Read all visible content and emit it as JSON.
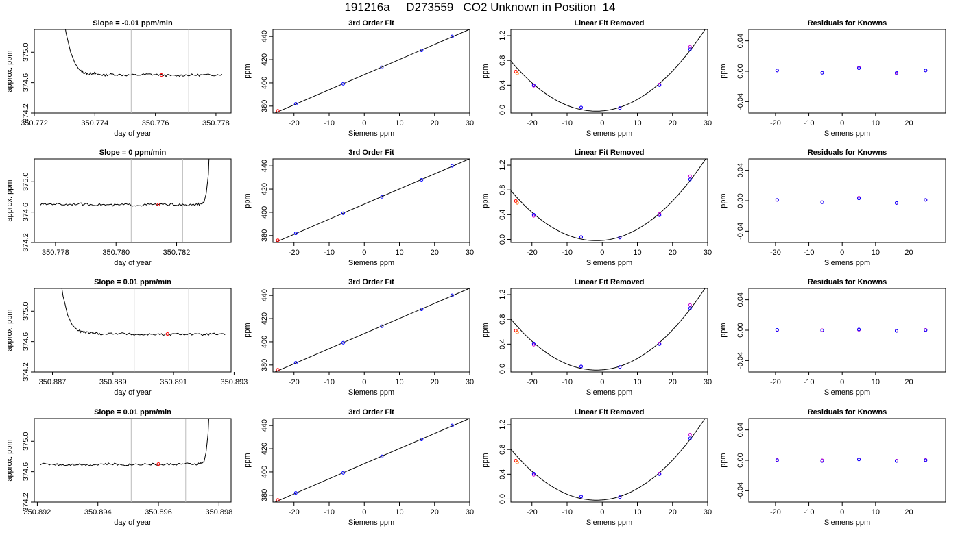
{
  "title": "191216a     D273559   CO2 Unknown in Position  14",
  "chart_data": [
    {
      "type": "line",
      "panel": "timeseries",
      "title": "Slope =  -0.01  ppm/min",
      "xlabel": "day of year",
      "ylabel": "approx. ppm",
      "xlim": [
        350.772,
        350.7785
      ],
      "ylim": [
        374.2,
        375.3
      ],
      "xticks": [
        350.772,
        350.774,
        350.776,
        350.778
      ],
      "xticklabels": [
        "350.772",
        "350.774",
        "350.776",
        "350.778"
      ],
      "yticks": [
        374.2,
        374.6,
        375.0
      ],
      "yticklabels": [
        "374.2",
        "374.6",
        "375.0"
      ],
      "vlines": [
        350.7752,
        350.7771
      ],
      "spike": "start",
      "x": [
        350.7729,
        350.77305,
        350.7732,
        350.77335,
        350.7735,
        350.77365,
        350.7738,
        350.77395,
        350.7741,
        350.7743,
        350.7746,
        350.775,
        350.7754,
        350.7758,
        350.7762,
        350.7766,
        350.777,
        350.7774,
        350.7778,
        350.7782
      ],
      "y": [
        375.6,
        375.25,
        375.0,
        374.85,
        374.76,
        374.73,
        374.71,
        374.73,
        374.71,
        374.7,
        374.71,
        374.7,
        374.7,
        374.71,
        374.7,
        374.69,
        374.7,
        374.7,
        374.7,
        374.71
      ],
      "marker": {
        "x": 350.7762,
        "y": 374.7
      }
    },
    {
      "type": "scatter",
      "panel": "fit",
      "title": "3rd Order Fit",
      "xlabel": "Siemens ppm",
      "ylabel": "ppm",
      "xlim": [
        -26,
        30
      ],
      "ylim": [
        374,
        446
      ],
      "xticks": [
        -20,
        -10,
        0,
        10,
        20,
        30
      ],
      "xticklabels": [
        "-20",
        "-10",
        "0",
        "10",
        "20",
        "30"
      ],
      "yticks": [
        380,
        400,
        420,
        440
      ],
      "yticklabels": [
        "380",
        "400",
        "420",
        "440"
      ],
      "x": [
        -19.5,
        -6,
        5,
        16.3,
        25
      ],
      "y": [
        381.9,
        399.2,
        413.4,
        428.0,
        440.0
      ],
      "unknown": {
        "x": -24.6,
        "y": 375.9
      }
    },
    {
      "type": "scatter",
      "panel": "linfit",
      "title": "Linear Fit Removed",
      "xlabel": "Siemens ppm",
      "ylabel": "ppm",
      "xlim": [
        -26,
        30
      ],
      "ylim": [
        -0.05,
        1.3
      ],
      "xticks": [
        -20,
        -10,
        0,
        10,
        20,
        30
      ],
      "xticklabels": [
        "-20",
        "-10",
        "0",
        "10",
        "20",
        "30"
      ],
      "yticks": [
        0,
        0.4,
        0.8,
        1.2
      ],
      "yticklabels": [
        "0.0",
        "0.4",
        "0.8",
        "1.2"
      ],
      "x": [
        -19.5,
        -6,
        5,
        16.3,
        25
      ],
      "y": [
        0.4,
        0.04,
        0.03,
        0.4,
        0.98
      ],
      "y_alt": [
        0.39,
        0.04,
        0.03,
        0.41,
        1.02
      ],
      "unknown": {
        "x": -24.6,
        "y": 0.62
      }
    },
    {
      "type": "scatter",
      "panel": "resid",
      "title": "Residuals for Knowns",
      "xlabel": "Siemens ppm",
      "ylabel": "ppm",
      "xlim": [
        -28,
        31
      ],
      "ylim": [
        -0.055,
        0.055
      ],
      "xticks": [
        -20,
        -10,
        0,
        10,
        20
      ],
      "xticklabels": [
        "-20",
        "-10",
        "0",
        "10",
        "20"
      ],
      "yticks": [
        -0.04,
        0,
        0.04
      ],
      "yticklabels": [
        "-0.04",
        "0.00",
        "0.04"
      ],
      "x": [
        -19.5,
        -6,
        5,
        16.3,
        25
      ],
      "y": [
        0.001,
        -0.002,
        0.004,
        -0.002,
        0.001
      ],
      "y_alt": [
        0.001,
        -0.002,
        0.005,
        -0.003,
        0.001
      ]
    },
    {
      "type": "line",
      "panel": "timeseries",
      "title": "Slope =  0  ppm/min",
      "xlabel": "day of year",
      "ylabel": "approx. ppm",
      "xlim": [
        350.7773,
        350.7838
      ],
      "ylim": [
        374.2,
        375.3
      ],
      "xticks": [
        350.778,
        350.78,
        350.782
      ],
      "xticklabels": [
        "350.778",
        "350.780",
        "350.782"
      ],
      "yticks": [
        374.2,
        374.6,
        375.0
      ],
      "yticklabels": [
        "374.2",
        "374.6",
        "375.0"
      ],
      "vlines": [
        350.7805,
        350.7822
      ],
      "spike": "end",
      "x": [
        350.7775,
        350.7779,
        350.7783,
        350.7787,
        350.7791,
        350.7795,
        350.7799,
        350.7803,
        350.7807,
        350.7811,
        350.7815,
        350.7819,
        350.7823,
        350.7827,
        350.7829,
        350.78298,
        350.78305,
        350.7831
      ],
      "y": [
        374.7,
        374.71,
        374.7,
        374.71,
        374.7,
        374.7,
        374.69,
        374.7,
        374.69,
        374.7,
        374.7,
        374.7,
        374.69,
        374.7,
        374.72,
        374.85,
        375.1,
        375.6
      ],
      "marker": {
        "x": 350.7814,
        "y": 374.7
      }
    },
    {
      "type": "scatter",
      "panel": "fit",
      "title": "3rd Order Fit",
      "xlabel": "Siemens ppm",
      "ylabel": "ppm",
      "xlim": [
        -26,
        30
      ],
      "ylim": [
        374,
        446
      ],
      "xticks": [
        -20,
        -10,
        0,
        10,
        20,
        30
      ],
      "xticklabels": [
        "-20",
        "-10",
        "0",
        "10",
        "20",
        "30"
      ],
      "yticks": [
        380,
        400,
        420,
        440
      ],
      "yticklabels": [
        "380",
        "400",
        "420",
        "440"
      ],
      "x": [
        -19.5,
        -6,
        5,
        16.3,
        25
      ],
      "y": [
        381.9,
        399.2,
        413.4,
        428.0,
        440.0
      ],
      "unknown": {
        "x": -24.6,
        "y": 375.9
      }
    },
    {
      "type": "scatter",
      "panel": "linfit",
      "title": "Linear Fit Removed",
      "xlabel": "Siemens ppm",
      "ylabel": "ppm",
      "xlim": [
        -26,
        30
      ],
      "ylim": [
        -0.05,
        1.3
      ],
      "xticks": [
        -20,
        -10,
        0,
        10,
        20,
        30
      ],
      "xticklabels": [
        "-20",
        "-10",
        "0",
        "10",
        "20",
        "30"
      ],
      "yticks": [
        0,
        0.4,
        0.8,
        1.2
      ],
      "yticklabels": [
        "0.0",
        "0.4",
        "0.8",
        "1.2"
      ],
      "x": [
        -19.5,
        -6,
        5,
        16.3,
        25
      ],
      "y": [
        0.4,
        0.04,
        0.03,
        0.39,
        0.97
      ],
      "y_alt": [
        0.38,
        0.04,
        0.03,
        0.41,
        1.02
      ],
      "unknown": {
        "x": -24.6,
        "y": 0.62
      }
    },
    {
      "type": "scatter",
      "panel": "resid",
      "title": "Residuals for Knowns",
      "xlabel": "Siemens ppm",
      "ylabel": "ppm",
      "xlim": [
        -28,
        31
      ],
      "ylim": [
        -0.055,
        0.055
      ],
      "xticks": [
        -20,
        -10,
        0,
        10,
        20
      ],
      "xticklabels": [
        "-20",
        "-10",
        "0",
        "10",
        "20"
      ],
      "yticks": [
        -0.04,
        0,
        0.04
      ],
      "yticklabels": [
        "-0.04",
        "0.00",
        "0.04"
      ],
      "x": [
        -19.5,
        -6,
        5,
        16.3,
        25
      ],
      "y": [
        0.001,
        -0.002,
        0.003,
        -0.003,
        0.001
      ],
      "y_alt": [
        0.001,
        -0.002,
        0.004,
        -0.003,
        0.001
      ]
    },
    {
      "type": "line",
      "panel": "timeseries",
      "title": "Slope =  0.01  ppm/min",
      "xlabel": "day of year",
      "ylabel": "approx. ppm",
      "xlim": [
        350.8864,
        350.8929
      ],
      "ylim": [
        374.2,
        375.3
      ],
      "xticks": [
        350.887,
        350.889,
        350.891,
        350.893
      ],
      "xticklabels": [
        "350.887",
        "350.889",
        "350.891",
        "350.893"
      ],
      "yticks": [
        374.2,
        374.6,
        375.0
      ],
      "yticklabels": [
        "374.2",
        "374.6",
        "375.0"
      ],
      "vlines": [
        350.8897,
        350.8915
      ],
      "spike": "start",
      "x": [
        350.8872,
        350.88735,
        350.8875,
        350.88765,
        350.8878,
        350.88795,
        350.8881,
        350.8884,
        350.8887,
        350.8891,
        350.8895,
        350.8899,
        350.8903,
        350.8907,
        350.8911,
        350.8915,
        350.8919,
        350.8923,
        350.8927
      ],
      "y": [
        375.6,
        375.2,
        374.95,
        374.82,
        374.76,
        374.73,
        374.72,
        374.71,
        374.7,
        374.71,
        374.7,
        374.69,
        374.7,
        374.69,
        374.7,
        374.7,
        374.69,
        374.7,
        374.69
      ],
      "marker": {
        "x": 350.8908,
        "y": 374.7
      }
    },
    {
      "type": "scatter",
      "panel": "fit",
      "title": "3rd Order Fit",
      "xlabel": "Siemens ppm",
      "ylabel": "ppm",
      "xlim": [
        -26,
        30
      ],
      "ylim": [
        374,
        446
      ],
      "xticks": [
        -20,
        -10,
        0,
        10,
        20,
        30
      ],
      "xticklabels": [
        "-20",
        "-10",
        "0",
        "10",
        "20",
        "30"
      ],
      "yticks": [
        380,
        400,
        420,
        440
      ],
      "yticklabels": [
        "380",
        "400",
        "420",
        "440"
      ],
      "x": [
        -19.5,
        -6,
        5,
        16.3,
        25
      ],
      "y": [
        381.9,
        399.2,
        413.4,
        428.0,
        440.0
      ],
      "unknown": {
        "x": -24.6,
        "y": 375.9
      }
    },
    {
      "type": "scatter",
      "panel": "linfit",
      "title": "Linear Fit Removed",
      "xlabel": "Siemens ppm",
      "ylabel": "ppm",
      "xlim": [
        -26,
        30
      ],
      "ylim": [
        -0.05,
        1.3
      ],
      "xticks": [
        -20,
        -10,
        0,
        10,
        20,
        30
      ],
      "xticklabels": [
        "-20",
        "-10",
        "0",
        "10",
        "20",
        "30"
      ],
      "yticks": [
        0,
        0.4,
        0.8,
        1.2
      ],
      "yticklabels": [
        "0.0",
        "0.4",
        "0.8",
        "1.2"
      ],
      "x": [
        -19.5,
        -6,
        5,
        16.3,
        25
      ],
      "y": [
        0.41,
        0.04,
        0.03,
        0.4,
        0.98
      ],
      "y_alt": [
        0.39,
        0.04,
        0.03,
        0.41,
        1.03
      ],
      "unknown": {
        "x": -24.6,
        "y": 0.62
      }
    },
    {
      "type": "scatter",
      "panel": "resid",
      "title": "Residuals for Knowns",
      "xlabel": "Siemens ppm",
      "ylabel": "ppm",
      "xlim": [
        -28,
        31
      ],
      "ylim": [
        -0.055,
        0.055
      ],
      "xticks": [
        -20,
        -10,
        0,
        10,
        20
      ],
      "xticklabels": [
        "-20",
        "-10",
        "0",
        "10",
        "20"
      ],
      "yticks": [
        -0.04,
        0,
        0.04
      ],
      "yticklabels": [
        "-0.04",
        "0.00",
        "0.04"
      ],
      "x": [
        -19.5,
        -6,
        5,
        16.3,
        25
      ],
      "y": [
        0.0005,
        -0.0005,
        0.001,
        -0.001,
        0.0
      ],
      "y_alt": [
        0.0,
        0.0,
        0.0005,
        -0.0005,
        0.0005
      ]
    },
    {
      "type": "line",
      "panel": "timeseries",
      "title": "Slope =  0.01  ppm/min",
      "xlabel": "day of year",
      "ylabel": "approx. ppm",
      "xlim": [
        350.8919,
        350.8984
      ],
      "ylim": [
        374.2,
        375.3
      ],
      "xticks": [
        350.892,
        350.894,
        350.896,
        350.898
      ],
      "xticklabels": [
        "350.892",
        "350.894",
        "350.896",
        "350.898"
      ],
      "yticks": [
        374.2,
        374.6,
        375.0
      ],
      "yticklabels": [
        "374.2",
        "374.6",
        "375.0"
      ],
      "vlines": [
        350.8951,
        350.8969
      ],
      "spike": "end",
      "x": [
        350.8921,
        350.8925,
        350.8929,
        350.8933,
        350.8937,
        350.8941,
        350.8945,
        350.8949,
        350.8953,
        350.8957,
        350.8961,
        350.8965,
        350.8969,
        350.8973,
        350.8975,
        350.89757,
        350.89764,
        350.8977
      ],
      "y": [
        374.7,
        374.7,
        374.69,
        374.7,
        374.69,
        374.7,
        374.7,
        374.69,
        374.7,
        374.7,
        374.69,
        374.7,
        374.7,
        374.7,
        374.72,
        374.85,
        375.1,
        375.6
      ],
      "marker": {
        "x": 350.896,
        "y": 374.7
      }
    },
    {
      "type": "scatter",
      "panel": "fit",
      "title": "3rd Order Fit",
      "xlabel": "Siemens ppm",
      "ylabel": "ppm",
      "xlim": [
        -26,
        30
      ],
      "ylim": [
        374,
        446
      ],
      "xticks": [
        -20,
        -10,
        0,
        10,
        20,
        30
      ],
      "xticklabels": [
        "-20",
        "-10",
        "0",
        "10",
        "20",
        "30"
      ],
      "yticks": [
        380,
        400,
        420,
        440
      ],
      "yticklabels": [
        "380",
        "400",
        "420",
        "440"
      ],
      "x": [
        -19.5,
        -6,
        5,
        16.3,
        25
      ],
      "y": [
        381.9,
        399.2,
        413.4,
        428.0,
        440.0
      ],
      "unknown": {
        "x": -24.6,
        "y": 375.9
      }
    },
    {
      "type": "scatter",
      "panel": "linfit",
      "title": "Linear Fit Removed",
      "xlabel": "Siemens ppm",
      "ylabel": "ppm",
      "xlim": [
        -26,
        30
      ],
      "ylim": [
        -0.05,
        1.3
      ],
      "xticks": [
        -20,
        -10,
        0,
        10,
        20,
        30
      ],
      "xticklabels": [
        "-20",
        "-10",
        "0",
        "10",
        "20",
        "30"
      ],
      "yticks": [
        0,
        0.4,
        0.8,
        1.2
      ],
      "yticklabels": [
        "0.0",
        "0.4",
        "0.8",
        "1.2"
      ],
      "x": [
        -19.5,
        -6,
        5,
        16.3,
        25
      ],
      "y": [
        0.41,
        0.04,
        0.03,
        0.4,
        0.98
      ],
      "y_alt": [
        0.39,
        0.04,
        0.03,
        0.41,
        1.04
      ],
      "unknown": {
        "x": -24.6,
        "y": 0.62
      }
    },
    {
      "type": "scatter",
      "panel": "resid",
      "title": "Residuals for Knowns",
      "xlabel": "Siemens ppm",
      "ylabel": "ppm",
      "xlim": [
        -28,
        31
      ],
      "ylim": [
        -0.055,
        0.055
      ],
      "xticks": [
        -20,
        -10,
        0,
        10,
        20
      ],
      "xticklabels": [
        "-20",
        "-10",
        "0",
        "10",
        "20"
      ],
      "yticks": [
        -0.04,
        0,
        0.04
      ],
      "yticklabels": [
        "-0.04",
        "0.00",
        "0.04"
      ],
      "x": [
        -19.5,
        -6,
        5,
        16.3,
        25
      ],
      "y": [
        0.0,
        -0.001,
        0.001,
        -0.001,
        0.0
      ],
      "y_alt": [
        0.0005,
        0.0,
        0.0015,
        -0.0005,
        0.0005
      ]
    }
  ]
}
